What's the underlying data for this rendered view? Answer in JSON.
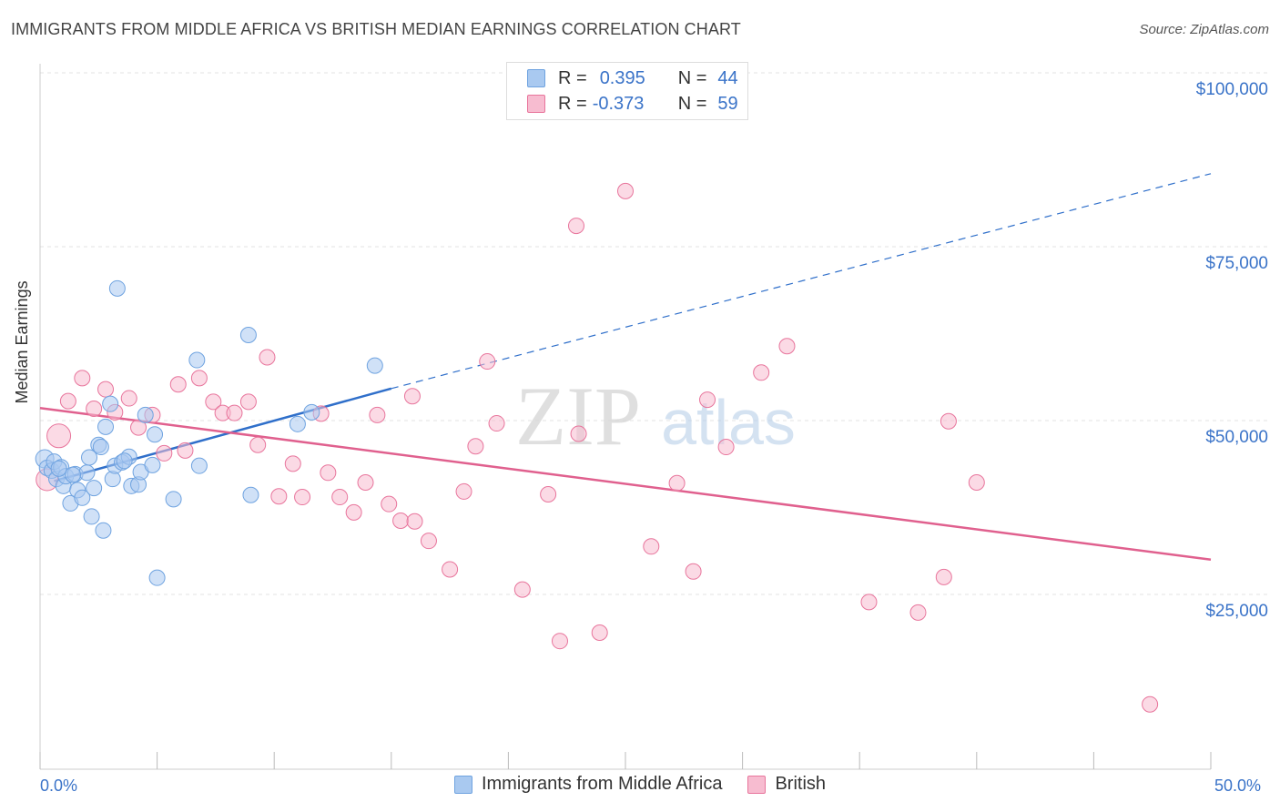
{
  "header": {
    "title": "IMMIGRANTS FROM MIDDLE AFRICA VS BRITISH MEDIAN EARNINGS CORRELATION CHART",
    "source": "Source: ZipAtlas.com"
  },
  "legend": {
    "r_label": "R =",
    "n_label": "N =",
    "rows": [
      {
        "r": "0.395",
        "n": "44",
        "color": "#a9c9f0"
      },
      {
        "r": "-0.373",
        "n": "59",
        "color": "#f7bcd0"
      }
    ]
  },
  "bottom_legend": [
    "Immigrants from Middle Africa",
    "British"
  ],
  "watermark": {
    "zip": "ZIP",
    "atlas": "atlas"
  },
  "chart_data": {
    "type": "scatter",
    "title": "IMMIGRANTS FROM MIDDLE AFRICA VS BRITISH MEDIAN EARNINGS CORRELATION CHART",
    "ylabel": "Median Earnings",
    "xlim": [
      0,
      50
    ],
    "ylim": [
      0,
      105000
    ],
    "x_tick_labels": {
      "left": "0.0%",
      "right": "50.0%"
    },
    "y_ticks": [
      25000,
      50000,
      75000,
      100000
    ],
    "y_tick_labels": [
      "$25,000",
      "$50,000",
      "$75,000",
      "$100,000"
    ],
    "grid": "horizontal dashed",
    "series": [
      {
        "name": "Immigrants from Middle Africa",
        "color": "#6fa3e0",
        "fill": "#a9c9f0",
        "trend": {
          "x0": 0.6,
          "y0": 41300,
          "x1": 15,
          "y1": 54600,
          "dash_to_x": 50,
          "dash_to_y": 85500
        },
        "points": [
          [
            0.2,
            44500
          ],
          [
            0.3,
            43200
          ],
          [
            0.5,
            42800
          ],
          [
            0.6,
            44100
          ],
          [
            0.7,
            41600
          ],
          [
            0.9,
            43300
          ],
          [
            1.0,
            40600
          ],
          [
            1.1,
            42000
          ],
          [
            1.3,
            38100
          ],
          [
            1.5,
            42300
          ],
          [
            1.6,
            40000
          ],
          [
            1.8,
            38900
          ],
          [
            2.0,
            42500
          ],
          [
            2.1,
            44700
          ],
          [
            2.2,
            36200
          ],
          [
            2.3,
            40300
          ],
          [
            2.5,
            46500
          ],
          [
            2.6,
            46200
          ],
          [
            2.7,
            34200
          ],
          [
            2.8,
            49100
          ],
          [
            3.0,
            52400
          ],
          [
            3.1,
            41600
          ],
          [
            3.2,
            43500
          ],
          [
            3.3,
            69000
          ],
          [
            3.5,
            44000
          ],
          [
            3.8,
            44800
          ],
          [
            3.9,
            40600
          ],
          [
            4.2,
            40800
          ],
          [
            4.3,
            42600
          ],
          [
            4.5,
            50800
          ],
          [
            4.8,
            43600
          ],
          [
            4.9,
            48000
          ],
          [
            5.0,
            27400
          ],
          [
            5.7,
            38700
          ],
          [
            6.7,
            58700
          ],
          [
            6.8,
            43500
          ],
          [
            8.9,
            62300
          ],
          [
            9.0,
            39300
          ],
          [
            11.0,
            49500
          ],
          [
            11.6,
            51200
          ],
          [
            14.3,
            57900
          ],
          [
            0.8,
            43100
          ],
          [
            1.4,
            42200
          ],
          [
            3.6,
            44200
          ]
        ]
      },
      {
        "name": "British",
        "color": "#e8759c",
        "fill": "#f7bcd0",
        "trend": {
          "x0": 0,
          "y0": 51800,
          "x1": 50,
          "y1": 30000
        },
        "points": [
          [
            0.3,
            41500
          ],
          [
            0.8,
            47800
          ],
          [
            1.2,
            52800
          ],
          [
            1.8,
            56100
          ],
          [
            2.3,
            51700
          ],
          [
            2.8,
            54500
          ],
          [
            3.2,
            51200
          ],
          [
            3.8,
            53200
          ],
          [
            4.2,
            49000
          ],
          [
            4.8,
            50800
          ],
          [
            5.3,
            45300
          ],
          [
            5.9,
            55200
          ],
          [
            6.2,
            45700
          ],
          [
            6.8,
            56100
          ],
          [
            7.4,
            52700
          ],
          [
            7.8,
            51100
          ],
          [
            8.3,
            51100
          ],
          [
            8.9,
            52700
          ],
          [
            9.3,
            46500
          ],
          [
            9.7,
            59100
          ],
          [
            10.2,
            39100
          ],
          [
            10.8,
            43800
          ],
          [
            11.2,
            39000
          ],
          [
            12.0,
            51000
          ],
          [
            12.3,
            42500
          ],
          [
            12.8,
            39000
          ],
          [
            13.4,
            36800
          ],
          [
            13.9,
            41100
          ],
          [
            14.4,
            50800
          ],
          [
            14.9,
            38000
          ],
          [
            15.4,
            35600
          ],
          [
            15.9,
            53500
          ],
          [
            16.0,
            35500
          ],
          [
            16.6,
            32700
          ],
          [
            17.5,
            28600
          ],
          [
            18.1,
            39800
          ],
          [
            18.6,
            46300
          ],
          [
            19.1,
            58500
          ],
          [
            19.5,
            49600
          ],
          [
            20.6,
            25700
          ],
          [
            21.7,
            39400
          ],
          [
            22.2,
            18300
          ],
          [
            22.9,
            78000
          ],
          [
            23.0,
            48100
          ],
          [
            23.9,
            19500
          ],
          [
            25.0,
            83000
          ],
          [
            26.1,
            31900
          ],
          [
            27.2,
            41000
          ],
          [
            27.9,
            28300
          ],
          [
            28.5,
            53000
          ],
          [
            29.3,
            46200
          ],
          [
            30.8,
            56900
          ],
          [
            31.9,
            60700
          ],
          [
            35.4,
            23900
          ],
          [
            37.5,
            22400
          ],
          [
            38.6,
            27500
          ],
          [
            38.8,
            49900
          ],
          [
            40.0,
            41100
          ],
          [
            47.4,
            9200
          ]
        ]
      }
    ]
  }
}
